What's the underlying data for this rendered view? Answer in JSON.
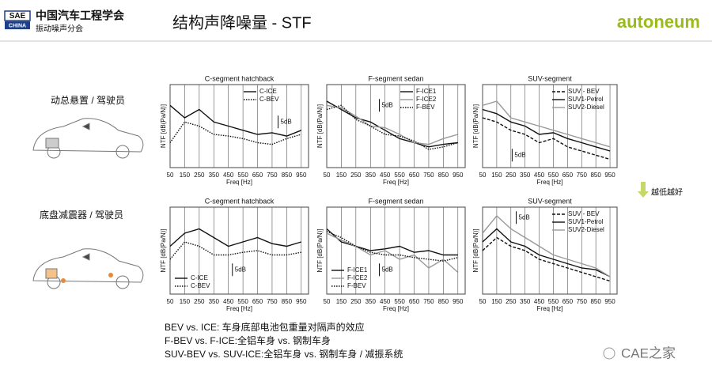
{
  "header": {
    "sae": "SAE",
    "china": "CHINA",
    "org": "中国汽车工程学会",
    "sub": "振动噪声分会",
    "title": "结构声降噪量 - STF",
    "brand": "autoneum"
  },
  "rows": [
    "动总悬置 / 驾驶员",
    "底盘减震器 / 驾驶员"
  ],
  "arrow_label": "越低越好",
  "notes": [
    "BEV vs. ICE: 车身底部电池包重量对隔声的效应",
    "F-BEV vs. F-ICE:全铝车身 vs. 钢制车身",
    "SUV-BEV vs. SUV-ICE:全铝车身 vs. 钢制车身 / 减振系统"
  ],
  "watermark": "CAE之家",
  "chart_data": [
    {
      "type": "line",
      "title": "C-segment hatchback",
      "x_label": "Freq [Hz]",
      "y_label": "NTF [dB(Pa/N)]",
      "annotation": "5dB",
      "legend": "top-right",
      "grid": true,
      "x": [
        50,
        150,
        250,
        350,
        450,
        550,
        650,
        750,
        850,
        950
      ],
      "xlim": [
        50,
        1000
      ],
      "xticks": [
        50,
        150,
        250,
        350,
        450,
        550,
        650,
        750,
        850,
        950
      ],
      "ylim": [
        0,
        100
      ],
      "series": [
        {
          "name": "C-ICE",
          "color": "#111111",
          "dash": "solid",
          "values": [
            75,
            60,
            70,
            55,
            50,
            45,
            40,
            42,
            38,
            45
          ]
        },
        {
          "name": "C-BEV",
          "color": "#111111",
          "dash": "dotted",
          "values": [
            30,
            55,
            50,
            40,
            38,
            35,
            30,
            28,
            35,
            40
          ]
        }
      ]
    },
    {
      "type": "line",
      "title": "F-segment sedan",
      "x_label": "Freq [Hz]",
      "y_label": "NTF [dB(Pa/N)]",
      "annotation": "5dB",
      "legend": "top-right",
      "grid": true,
      "x": [
        50,
        150,
        250,
        350,
        450,
        550,
        650,
        750,
        850,
        950
      ],
      "xlim": [
        50,
        1000
      ],
      "xticks": [
        50,
        150,
        250,
        350,
        450,
        550,
        650,
        750,
        850,
        950
      ],
      "ylim": [
        0,
        100
      ],
      "series": [
        {
          "name": "F-ICE1",
          "color": "#111111",
          "dash": "solid",
          "values": [
            80,
            70,
            60,
            55,
            45,
            35,
            30,
            25,
            28,
            30
          ]
        },
        {
          "name": "F-ICE2",
          "color": "#999999",
          "dash": "solid",
          "values": [
            75,
            72,
            62,
            50,
            48,
            40,
            30,
            28,
            35,
            40
          ]
        },
        {
          "name": "F-BEV",
          "color": "#111111",
          "dash": "dotted",
          "values": [
            70,
            75,
            58,
            50,
            40,
            38,
            32,
            22,
            25,
            30
          ]
        }
      ]
    },
    {
      "type": "line",
      "title": "SUV-segment",
      "x_label": "Freq [Hz]",
      "y_label": "NTF [dB(Pa/N)]",
      "annotation": "5dB",
      "legend": "top-right",
      "grid": true,
      "x": [
        50,
        150,
        250,
        350,
        450,
        550,
        650,
        750,
        850,
        950
      ],
      "xlim": [
        50,
        1000
      ],
      "xticks": [
        50,
        150,
        250,
        350,
        450,
        550,
        650,
        750,
        850,
        950
      ],
      "ylim": [
        0,
        100
      ],
      "series": [
        {
          "name": "SUV - BEV",
          "color": "#111111",
          "dash": "dashed",
          "values": [
            60,
            55,
            45,
            40,
            30,
            35,
            25,
            20,
            15,
            10
          ]
        },
        {
          "name": "SUV1-Petrol",
          "color": "#111111",
          "dash": "solid",
          "values": [
            70,
            65,
            55,
            50,
            40,
            42,
            35,
            30,
            25,
            20
          ]
        },
        {
          "name": "SUV2-Diesel",
          "color": "#999999",
          "dash": "solid",
          "values": [
            75,
            80,
            60,
            55,
            50,
            45,
            40,
            35,
            30,
            25
          ]
        }
      ]
    },
    {
      "type": "line",
      "title": "C-segment hatchback",
      "x_label": "Freq [Hz]",
      "y_label": "NTF [dB(Pa/N)]",
      "annotation": "5dB",
      "legend": "bottom-left",
      "grid": true,
      "x": [
        50,
        150,
        250,
        350,
        450,
        550,
        650,
        750,
        850,
        950
      ],
      "xlim": [
        50,
        1000
      ],
      "xticks": [
        50,
        150,
        250,
        350,
        450,
        550,
        650,
        750,
        850,
        950
      ],
      "ylim": [
        0,
        100
      ],
      "series": [
        {
          "name": "C-ICE",
          "color": "#111111",
          "dash": "solid",
          "values": [
            55,
            70,
            75,
            65,
            55,
            60,
            65,
            58,
            55,
            60
          ]
        },
        {
          "name": "C-BEV",
          "color": "#111111",
          "dash": "dotted",
          "values": [
            40,
            60,
            55,
            45,
            45,
            48,
            50,
            45,
            45,
            48
          ]
        }
      ]
    },
    {
      "type": "line",
      "title": "F-segment sedan",
      "x_label": "Freq [Hz]",
      "y_label": "NTF [dB(Pa/N)]",
      "annotation": "5dB",
      "legend": "bottom-left",
      "grid": true,
      "x": [
        50,
        150,
        250,
        350,
        450,
        550,
        650,
        750,
        850,
        950
      ],
      "xlim": [
        50,
        1000
      ],
      "xticks": [
        50,
        150,
        250,
        350,
        450,
        550,
        650,
        750,
        850,
        950
      ],
      "ylim": [
        0,
        100
      ],
      "series": [
        {
          "name": "F-ICE1",
          "color": "#111111",
          "dash": "solid",
          "values": [
            75,
            60,
            55,
            50,
            52,
            55,
            48,
            50,
            45,
            45
          ]
        },
        {
          "name": "F-ICE2",
          "color": "#999999",
          "dash": "solid",
          "values": [
            70,
            62,
            55,
            45,
            50,
            40,
            45,
            30,
            40,
            25
          ]
        },
        {
          "name": "F-BEV",
          "color": "#111111",
          "dash": "dotted",
          "values": [
            72,
            65,
            55,
            48,
            45,
            45,
            42,
            40,
            38,
            42
          ]
        }
      ]
    },
    {
      "type": "line",
      "title": "SUV-segment",
      "x_label": "Freq [Hz]",
      "y_label": "NTF [dB(Pa/N)]",
      "annotation": "5dB",
      "legend": "top-right",
      "grid": true,
      "x": [
        50,
        150,
        250,
        350,
        450,
        550,
        650,
        750,
        850,
        950
      ],
      "xlim": [
        50,
        1000
      ],
      "xticks": [
        50,
        150,
        250,
        350,
        450,
        550,
        650,
        750,
        850,
        950
      ],
      "ylim": [
        0,
        100
      ],
      "series": [
        {
          "name": "SUV - BEV",
          "color": "#111111",
          "dash": "dashed",
          "values": [
            50,
            65,
            55,
            50,
            40,
            35,
            30,
            25,
            20,
            15
          ]
        },
        {
          "name": "SUV1-Petrol",
          "color": "#111111",
          "dash": "solid",
          "values": [
            60,
            75,
            60,
            55,
            45,
            40,
            35,
            30,
            28,
            20
          ]
        },
        {
          "name": "SUV2-Diesel",
          "color": "#999999",
          "dash": "solid",
          "values": [
            70,
            90,
            75,
            65,
            55,
            45,
            40,
            35,
            30,
            20
          ]
        }
      ]
    }
  ]
}
